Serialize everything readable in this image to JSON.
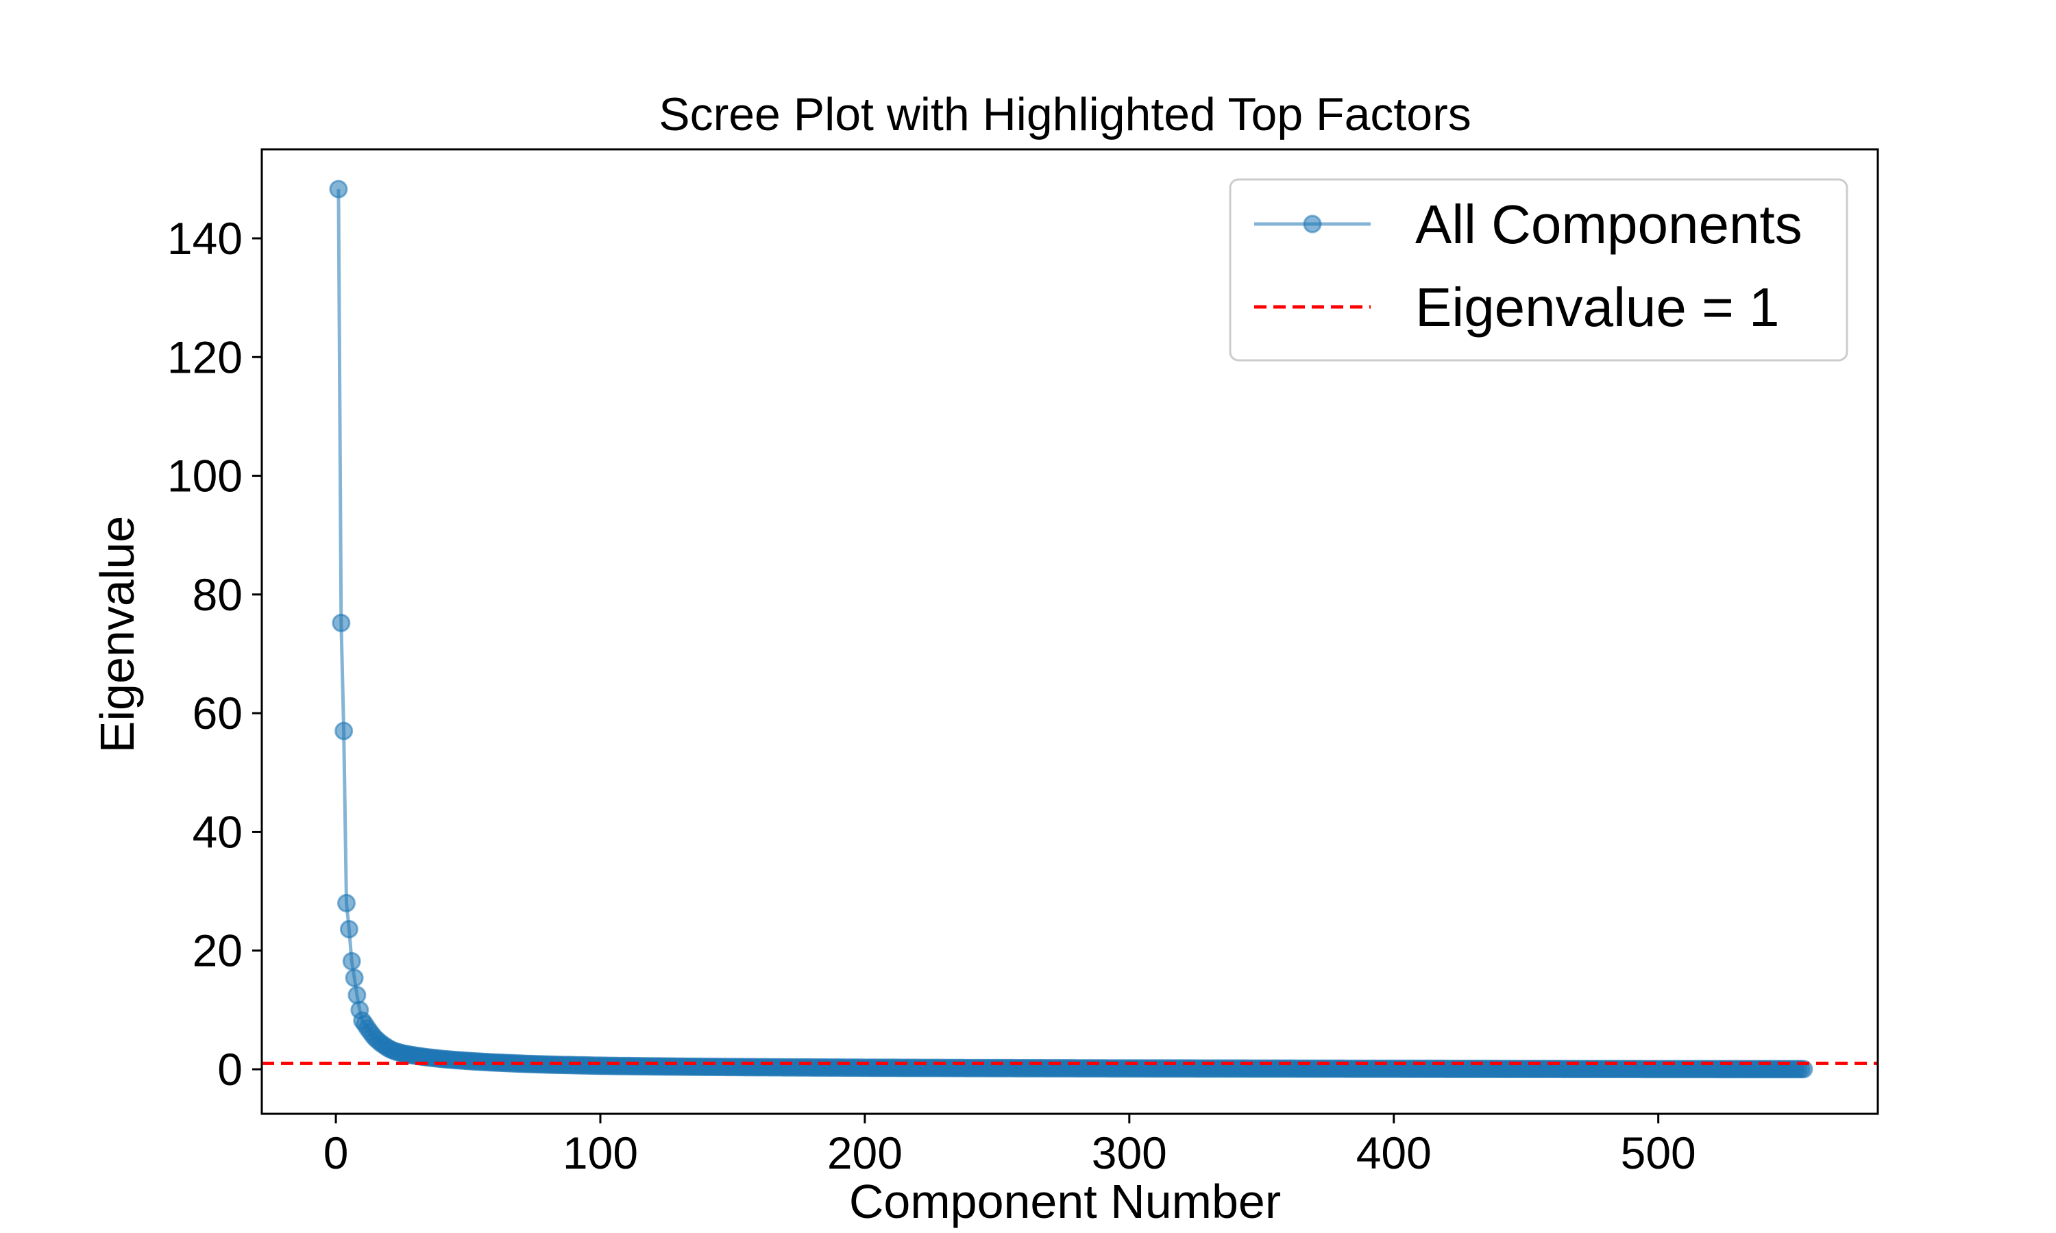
{
  "chart_data": {
    "type": "line",
    "title": "Scree Plot with Highlighted Top Factors",
    "xlabel": "Component Number",
    "ylabel": "Eigenvalue",
    "xlim": [
      -28,
      583
    ],
    "ylim": [
      -7.5,
      155
    ],
    "xticks": [
      0,
      100,
      200,
      300,
      400,
      500
    ],
    "yticks": [
      0,
      20,
      40,
      60,
      80,
      100,
      120,
      140
    ],
    "x_tick_labels": [
      "0",
      "100",
      "200",
      "300",
      "400",
      "500"
    ],
    "y_tick_labels": [
      "0",
      "20",
      "40",
      "60",
      "80",
      "100",
      "120",
      "140"
    ],
    "grid": false,
    "legend_position": "top-right",
    "series": [
      {
        "name": "All Components",
        "style": "line-with-markers",
        "color": "#1f77b4",
        "alpha": 0.55,
        "leading_points": [
          [
            1,
            148.3
          ],
          [
            2,
            75.2
          ],
          [
            3,
            57.0
          ],
          [
            4,
            28.0
          ],
          [
            5,
            23.6
          ],
          [
            6,
            18.2
          ],
          [
            7,
            15.4
          ],
          [
            8,
            12.5
          ],
          [
            9,
            10.0
          ],
          [
            10,
            8.2
          ],
          [
            11,
            7.6
          ],
          [
            12,
            6.9
          ],
          [
            13,
            6.3
          ],
          [
            14,
            5.7
          ],
          [
            15,
            5.2
          ],
          [
            16,
            4.8
          ],
          [
            17,
            4.4
          ],
          [
            18,
            4.1
          ],
          [
            19,
            3.8
          ],
          [
            20,
            3.5
          ],
          [
            22,
            3.1
          ],
          [
            25,
            2.7
          ],
          [
            30,
            2.3
          ],
          [
            35,
            2.0
          ],
          [
            40,
            1.75
          ],
          [
            50,
            1.4
          ],
          [
            60,
            1.15
          ],
          [
            70,
            0.95
          ],
          [
            80,
            0.8
          ],
          [
            100,
            0.6
          ],
          [
            130,
            0.45
          ],
          [
            160,
            0.35
          ],
          [
            200,
            0.27
          ],
          [
            250,
            0.2
          ],
          [
            300,
            0.15
          ],
          [
            350,
            0.12
          ],
          [
            400,
            0.09
          ],
          [
            450,
            0.06
          ],
          [
            500,
            0.04
          ],
          [
            555,
            0.02
          ]
        ],
        "n_components": 555
      },
      {
        "name": "Eigenvalue = 1",
        "style": "dashed-horizontal",
        "color": "#ff0000",
        "y": 1
      }
    ]
  }
}
